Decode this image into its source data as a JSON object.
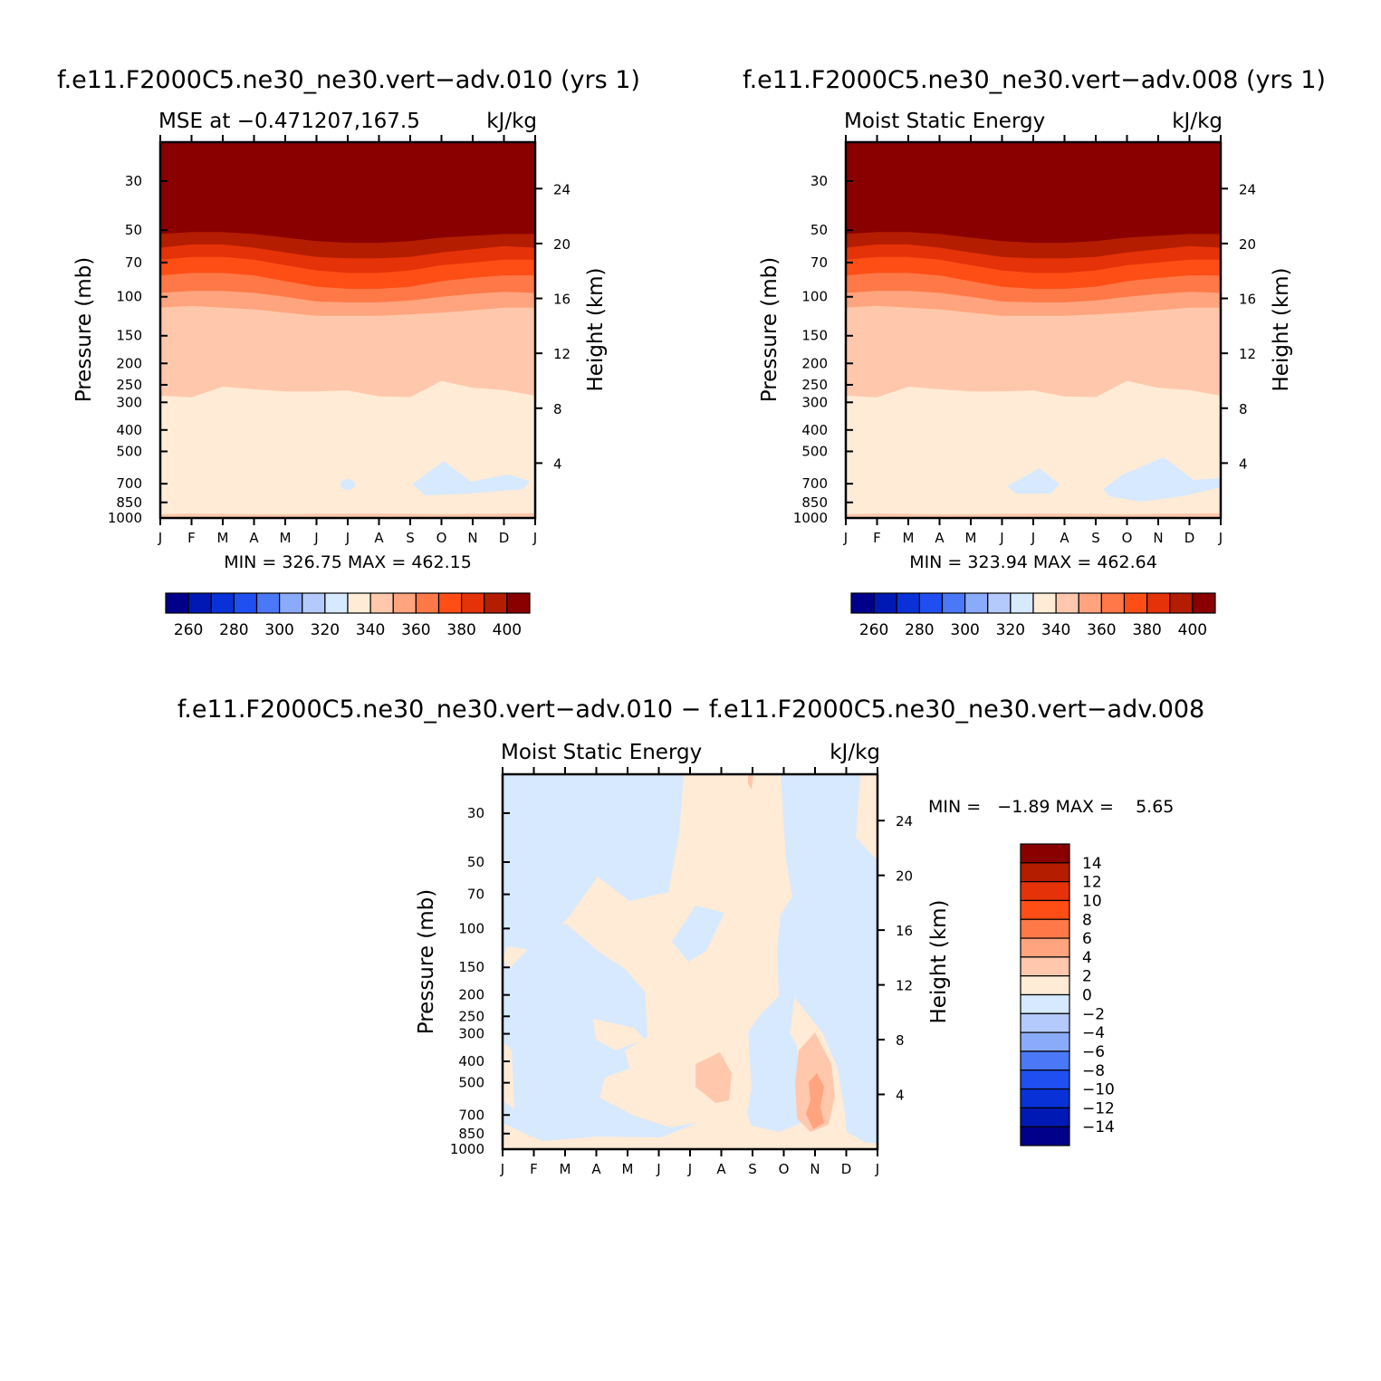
{
  "chart_data": [
    {
      "type": "heatmap",
      "panel": "top-left",
      "title": "f.e11.F2000C5.ne30_ne30.vert−adv.010 (yrs 1)",
      "subtitle_left": "MSE at −0.471207,167.5",
      "subtitle_right": "kJ/kg",
      "xlabel": "",
      "ylabel": "Pressure (mb)",
      "ylabel_right": "Height (km)",
      "x_ticks": [
        "J",
        "F",
        "M",
        "A",
        "M",
        "J",
        "J",
        "A",
        "S",
        "O",
        "N",
        "D",
        "J"
      ],
      "y_ticks": [
        30,
        50,
        70,
        100,
        150,
        200,
        250,
        300,
        400,
        500,
        700,
        850,
        1000
      ],
      "y_right_ticks": [
        24,
        20,
        16,
        12,
        8,
        4
      ],
      "ylim": [
        20,
        1000
      ],
      "stats": "MIN = 326.75 MAX = 462.15",
      "bands_mb": [
        1000,
        270,
        100,
        80,
        62,
        52
      ],
      "levels": [
        260,
        270,
        280,
        290,
        300,
        310,
        320,
        330,
        340,
        350,
        360,
        370,
        380,
        390,
        400
      ],
      "level_labels": [
        "260",
        "280",
        "300",
        "320",
        "340",
        "360",
        "380",
        "400"
      ]
    },
    {
      "type": "heatmap",
      "panel": "top-right",
      "title": "f.e11.F2000C5.ne30_ne30.vert−adv.008 (yrs 1)",
      "subtitle_left": "Moist Static Energy",
      "subtitle_right": "kJ/kg",
      "xlabel": "",
      "ylabel": "Pressure (mb)",
      "ylabel_right": "Height (km)",
      "x_ticks": [
        "J",
        "F",
        "M",
        "A",
        "M",
        "J",
        "J",
        "A",
        "S",
        "O",
        "N",
        "D",
        "J"
      ],
      "y_ticks": [
        30,
        50,
        70,
        100,
        150,
        200,
        250,
        300,
        400,
        500,
        700,
        850,
        1000
      ],
      "y_right_ticks": [
        24,
        20,
        16,
        12,
        8,
        4
      ],
      "ylim": [
        20,
        1000
      ],
      "stats": "MIN = 323.94 MAX = 462.64",
      "bands_mb": [
        1000,
        270,
        100,
        80,
        62,
        52
      ],
      "levels": [
        260,
        270,
        280,
        290,
        300,
        310,
        320,
        330,
        340,
        350,
        360,
        370,
        380,
        390,
        400
      ],
      "level_labels": [
        "260",
        "280",
        "300",
        "320",
        "340",
        "360",
        "380",
        "400"
      ]
    },
    {
      "type": "heatmap",
      "panel": "bottom-difference",
      "title": "f.e11.F2000C5.ne30_ne30.vert−adv.010 − f.e11.F2000C5.ne30_ne30.vert−adv.008",
      "subtitle_left": "Moist Static Energy",
      "subtitle_right": "kJ/kg",
      "xlabel": "",
      "ylabel": "Pressure (mb)",
      "ylabel_right": "Height (km)",
      "x_ticks": [
        "J",
        "F",
        "M",
        "A",
        "M",
        "J",
        "J",
        "A",
        "S",
        "O",
        "N",
        "D",
        "J"
      ],
      "y_ticks": [
        30,
        50,
        70,
        100,
        150,
        200,
        250,
        300,
        400,
        500,
        700,
        850,
        1000
      ],
      "y_right_ticks": [
        24,
        20,
        16,
        12,
        8,
        4
      ],
      "ylim": [
        20,
        1000
      ],
      "stats": "MIN =   −1.89 MAX =    5.65",
      "levels": [
        14,
        12,
        10,
        8,
        6,
        4,
        2,
        0,
        -2,
        -4,
        -6,
        -8,
        -10,
        -12,
        -14
      ],
      "level_labels": [
        "14",
        "12",
        "10",
        "8",
        "6",
        "4",
        "2",
        "0",
        "−2",
        "−4",
        "−6",
        "−8",
        "−10",
        "−12",
        "−14"
      ]
    }
  ],
  "colors": {
    "palette": [
      "#00008a",
      "#0019b4",
      "#0832d8",
      "#1f4ff0",
      "#4a78f6",
      "#8aabfa",
      "#b4c9fc",
      "#d6e9ff",
      "#ffebd6",
      "#ffc8ac",
      "#ffa47e",
      "#ff7848",
      "#ff4d16",
      "#e53208",
      "#b41d00",
      "#8a0000"
    ],
    "neg_region": "#d6e9ff",
    "pos_region": "#ffebd6",
    "pos2_region": "#ffc8ac",
    "pos3_region": "#ffa47e"
  }
}
